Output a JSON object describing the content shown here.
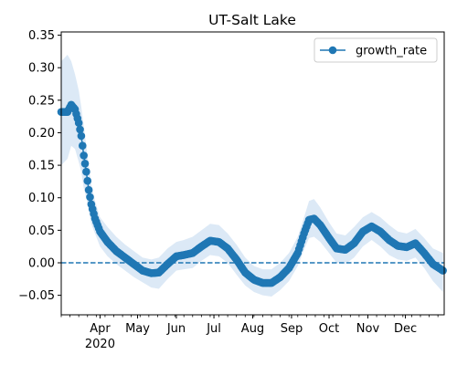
{
  "chart_data": {
    "type": "line",
    "title": "UT-Salt Lake",
    "xlabel": "",
    "ylabel": "",
    "x_range": [
      "2020-03-01",
      "2020-12-31"
    ],
    "ylim": [
      -0.08,
      0.355
    ],
    "y_ticks": [
      -0.05,
      0.0,
      0.05,
      0.1,
      0.15,
      0.2,
      0.25,
      0.3,
      0.35
    ],
    "y_tick_labels": [
      "−0.05",
      "0.00",
      "0.05",
      "0.10",
      "0.15",
      "0.20",
      "0.25",
      "0.30",
      "0.35"
    ],
    "x_ticks": [
      {
        "date": "2020-04-01",
        "label": "Apr",
        "sublabel": "2020"
      },
      {
        "date": "2020-05-01",
        "label": "May"
      },
      {
        "date": "2020-06-01",
        "label": "Jun"
      },
      {
        "date": "2020-07-01",
        "label": "Jul"
      },
      {
        "date": "2020-08-01",
        "label": "Aug"
      },
      {
        "date": "2020-09-01",
        "label": "Sep"
      },
      {
        "date": "2020-10-01",
        "label": "Oct"
      },
      {
        "date": "2020-11-01",
        "label": "Nov"
      },
      {
        "date": "2020-12-01",
        "label": "Dec"
      }
    ],
    "grid": false,
    "legend_position": "top-right",
    "series": [
      {
        "name": "growth_rate",
        "color": "#1f77b4",
        "band_color": "#dce9f6",
        "marker": "circle",
        "points": [
          {
            "x": "2020-03-01",
            "y": 0.232,
            "lo": 0.15,
            "hi": 0.31
          },
          {
            "x": "2020-03-06",
            "y": 0.232,
            "lo": 0.16,
            "hi": 0.32
          },
          {
            "x": "2020-03-09",
            "y": 0.243,
            "lo": 0.18,
            "hi": 0.31
          },
          {
            "x": "2020-03-12",
            "y": 0.236,
            "lo": 0.175,
            "hi": 0.29
          },
          {
            "x": "2020-03-15",
            "y": 0.215,
            "lo": 0.155,
            "hi": 0.265
          },
          {
            "x": "2020-03-17",
            "y": 0.195,
            "lo": 0.14,
            "hi": 0.24
          },
          {
            "x": "2020-03-19",
            "y": 0.165,
            "lo": 0.115,
            "hi": 0.21
          },
          {
            "x": "2020-03-21",
            "y": 0.14,
            "lo": 0.1,
            "hi": 0.18
          },
          {
            "x": "2020-03-23",
            "y": 0.112,
            "lo": 0.08,
            "hi": 0.15
          },
          {
            "x": "2020-03-25",
            "y": 0.09,
            "lo": 0.06,
            "hi": 0.12
          },
          {
            "x": "2020-03-28",
            "y": 0.068,
            "lo": 0.045,
            "hi": 0.095
          },
          {
            "x": "2020-04-01",
            "y": 0.048,
            "lo": 0.025,
            "hi": 0.07
          },
          {
            "x": "2020-04-07",
            "y": 0.032,
            "lo": 0.01,
            "hi": 0.055
          },
          {
            "x": "2020-04-14",
            "y": 0.018,
            "lo": -0.002,
            "hi": 0.04
          },
          {
            "x": "2020-04-21",
            "y": 0.008,
            "lo": -0.012,
            "hi": 0.028
          },
          {
            "x": "2020-04-28",
            "y": -0.002,
            "lo": -0.022,
            "hi": 0.018
          },
          {
            "x": "2020-05-05",
            "y": -0.012,
            "lo": -0.03,
            "hi": 0.008
          },
          {
            "x": "2020-05-12",
            "y": -0.016,
            "lo": -0.038,
            "hi": 0.005
          },
          {
            "x": "2020-05-18",
            "y": -0.015,
            "lo": -0.04,
            "hi": 0.008
          },
          {
            "x": "2020-05-25",
            "y": -0.002,
            "lo": -0.025,
            "hi": 0.022
          },
          {
            "x": "2020-06-01",
            "y": 0.01,
            "lo": -0.012,
            "hi": 0.032
          },
          {
            "x": "2020-06-07",
            "y": 0.012,
            "lo": -0.01,
            "hi": 0.035
          },
          {
            "x": "2020-06-14",
            "y": 0.015,
            "lo": -0.008,
            "hi": 0.04
          },
          {
            "x": "2020-06-21",
            "y": 0.025,
            "lo": 0.003,
            "hi": 0.05
          },
          {
            "x": "2020-06-28",
            "y": 0.034,
            "lo": 0.012,
            "hi": 0.06
          },
          {
            "x": "2020-07-05",
            "y": 0.032,
            "lo": 0.01,
            "hi": 0.058
          },
          {
            "x": "2020-07-12",
            "y": 0.022,
            "lo": 0.0,
            "hi": 0.045
          },
          {
            "x": "2020-07-19",
            "y": 0.005,
            "lo": -0.018,
            "hi": 0.028
          },
          {
            "x": "2020-07-26",
            "y": -0.015,
            "lo": -0.035,
            "hi": 0.008
          },
          {
            "x": "2020-08-02",
            "y": -0.026,
            "lo": -0.045,
            "hi": -0.005
          },
          {
            "x": "2020-08-09",
            "y": -0.031,
            "lo": -0.05,
            "hi": -0.01
          },
          {
            "x": "2020-08-16",
            "y": -0.031,
            "lo": -0.052,
            "hi": -0.01
          },
          {
            "x": "2020-08-23",
            "y": -0.022,
            "lo": -0.042,
            "hi": 0.0
          },
          {
            "x": "2020-08-30",
            "y": -0.008,
            "lo": -0.028,
            "hi": 0.015
          },
          {
            "x": "2020-09-06",
            "y": 0.015,
            "lo": -0.005,
            "hi": 0.04
          },
          {
            "x": "2020-09-11",
            "y": 0.045,
            "lo": 0.02,
            "hi": 0.07
          },
          {
            "x": "2020-09-15",
            "y": 0.066,
            "lo": 0.038,
            "hi": 0.095
          },
          {
            "x": "2020-09-19",
            "y": 0.068,
            "lo": 0.04,
            "hi": 0.098
          },
          {
            "x": "2020-09-24",
            "y": 0.058,
            "lo": 0.032,
            "hi": 0.085
          },
          {
            "x": "2020-10-01",
            "y": 0.038,
            "lo": 0.015,
            "hi": 0.062
          },
          {
            "x": "2020-10-07",
            "y": 0.022,
            "lo": 0.0,
            "hi": 0.045
          },
          {
            "x": "2020-10-14",
            "y": 0.02,
            "lo": -0.002,
            "hi": 0.042
          },
          {
            "x": "2020-10-21",
            "y": 0.03,
            "lo": 0.008,
            "hi": 0.055
          },
          {
            "x": "2020-10-28",
            "y": 0.048,
            "lo": 0.025,
            "hi": 0.07
          },
          {
            "x": "2020-11-04",
            "y": 0.056,
            "lo": 0.035,
            "hi": 0.078
          },
          {
            "x": "2020-11-11",
            "y": 0.048,
            "lo": 0.025,
            "hi": 0.07
          },
          {
            "x": "2020-11-18",
            "y": 0.035,
            "lo": 0.012,
            "hi": 0.058
          },
          {
            "x": "2020-11-25",
            "y": 0.026,
            "lo": 0.005,
            "hi": 0.048
          },
          {
            "x": "2020-12-02",
            "y": 0.024,
            "lo": 0.003,
            "hi": 0.045
          },
          {
            "x": "2020-12-09",
            "y": 0.03,
            "lo": 0.008,
            "hi": 0.052
          },
          {
            "x": "2020-12-16",
            "y": 0.015,
            "lo": -0.008,
            "hi": 0.038
          },
          {
            "x": "2020-12-23",
            "y": -0.002,
            "lo": -0.028,
            "hi": 0.022
          },
          {
            "x": "2020-12-31",
            "y": -0.012,
            "lo": -0.045,
            "hi": 0.015
          }
        ]
      }
    ],
    "reference_lines": [
      {
        "y": 0.0,
        "style": "dashed",
        "color": "#1f77b4"
      }
    ]
  }
}
